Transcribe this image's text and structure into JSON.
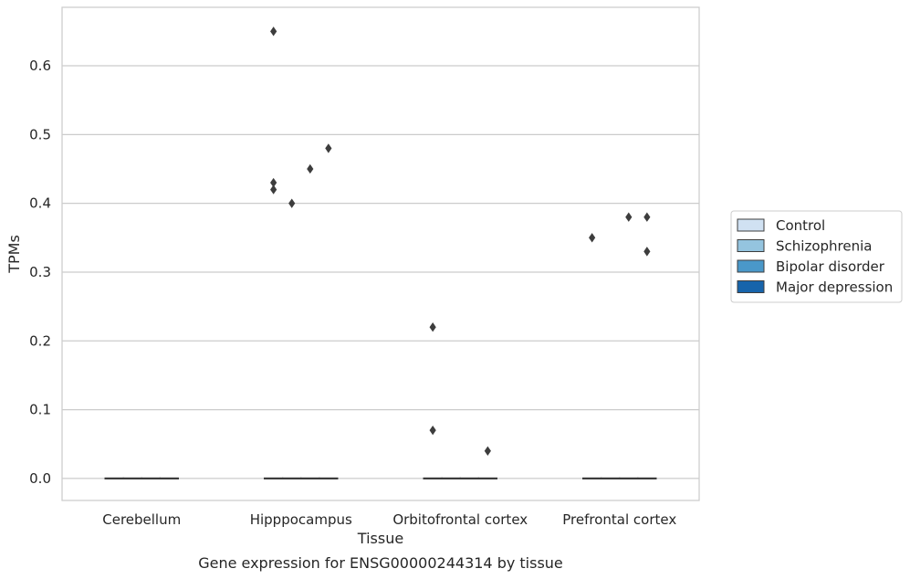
{
  "chart_data": {
    "type": "box",
    "title": "",
    "caption": "Gene expression for ENSG00000244314 by tissue",
    "xlabel": "Tissue",
    "ylabel": "TPMs",
    "categories": [
      "Cerebellum",
      "Hipppocampus",
      "Orbitofrontal cortex",
      "Prefrontal cortex"
    ],
    "ylim": [
      -0.032,
      0.685
    ],
    "yticks": [
      0.0,
      0.1,
      0.2,
      0.3,
      0.4,
      0.5,
      0.6
    ],
    "ytick_labels": [
      "0.0",
      "0.1",
      "0.2",
      "0.3",
      "0.4",
      "0.5",
      "0.6"
    ],
    "grid": true,
    "legend_position": "right",
    "series": [
      {
        "name": "Control",
        "color": "#d0e1f2",
        "boxes": [
          {
            "median": 0,
            "q1": 0,
            "q3": 0
          },
          {
            "median": 0,
            "q1": 0,
            "q3": 0
          },
          {
            "median": 0,
            "q1": 0,
            "q3": 0
          },
          {
            "median": 0,
            "q1": 0,
            "q3": 0
          }
        ],
        "outliers": [
          [],
          [
            0.65,
            0.43,
            0.42
          ],
          [],
          [
            0.35
          ]
        ]
      },
      {
        "name": "Schizophrenia",
        "color": "#94c4df",
        "boxes": [
          {
            "median": 0,
            "q1": 0,
            "q3": 0
          },
          {
            "median": 0,
            "q1": 0,
            "q3": 0
          },
          {
            "median": 0,
            "q1": 0,
            "q3": 0
          },
          {
            "median": 0,
            "q1": 0,
            "q3": 0
          }
        ],
        "outliers": [
          [],
          [
            0.4
          ],
          [],
          []
        ]
      },
      {
        "name": "Bipolar disorder",
        "color": "#4a98c9",
        "boxes": [
          {
            "median": 0,
            "q1": 0,
            "q3": 0
          },
          {
            "median": 0,
            "q1": 0,
            "q3": 0
          },
          {
            "median": 0,
            "q1": 0,
            "q3": 0
          },
          {
            "median": 0,
            "q1": 0,
            "q3": 0
          }
        ],
        "outliers": [
          [],
          [
            0.45
          ],
          [],
          [
            0.38
          ]
        ]
      },
      {
        "name": "Major depression",
        "color": "#1764ab",
        "boxes": [
          {
            "median": 0,
            "q1": 0,
            "q3": 0
          },
          {
            "median": 0,
            "q1": 0,
            "q3": 0
          },
          {
            "median": 0,
            "q1": 0,
            "q3": 0
          },
          {
            "median": 0,
            "q1": 0,
            "q3": 0
          }
        ],
        "outliers": [
          [],
          [
            0.48
          ],
          [
            0.04
          ],
          [
            0.38,
            0.33
          ]
        ]
      }
    ],
    "extra_outliers": [
      {
        "category": "Orbitofrontal cortex",
        "series": "Control",
        "values": [
          0.22,
          0.07
        ]
      }
    ]
  }
}
